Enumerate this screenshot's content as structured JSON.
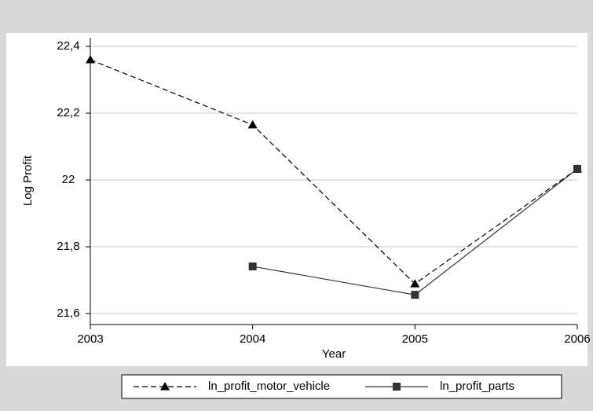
{
  "chart_data": {
    "type": "line",
    "x_label": "Year",
    "y_label": "Log Profit",
    "x": [
      2003,
      2004,
      2005,
      2006
    ],
    "series": [
      {
        "name": "ln_profit_motor_vehicle",
        "color": "#000000",
        "dash": "dashed",
        "marker": "triangle",
        "values": [
          22.36,
          22.165,
          21.689,
          22.033
        ]
      },
      {
        "name": "ln_profit_parts",
        "color": "#333333",
        "dash": "solid",
        "marker": "square",
        "values": [
          null,
          21.741,
          21.656,
          22.033
        ]
      }
    ],
    "xlim": [
      2003,
      2006
    ],
    "xticks": [
      2003,
      2004,
      2005,
      2006
    ],
    "ylim": [
      21.567,
      22.426
    ],
    "yticks": [
      {
        "value": 21.6,
        "label": "21,6"
      },
      {
        "value": 21.8,
        "label": "21,8"
      },
      22,
      {
        "value": 22.2,
        "label": "22,2"
      },
      {
        "value": 22.4,
        "label": "22,4"
      }
    ],
    "grid": true,
    "legend": "bottom"
  }
}
